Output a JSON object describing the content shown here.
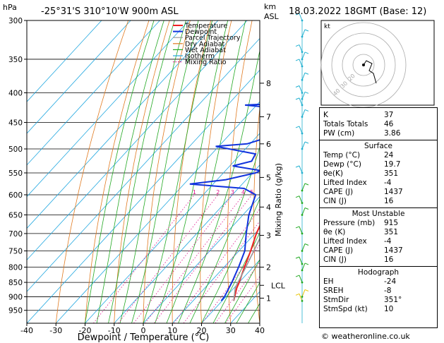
{
  "header": {
    "pressure_unit": "hPa",
    "location": "-25°31'S 310°10'W 900m ASL",
    "height_unit_1": "km",
    "height_unit_2": "ASL",
    "datetime": "18.03.2022 18GMT (Base: 12)"
  },
  "chart_data": {
    "type": "line",
    "title": "-25°31'S 310°10'W 900m ASL",
    "xlabel": "Dewpoint / Temperature (°C)",
    "ylabel": "hPa",
    "y_scale": "log",
    "xlim": [
      -40,
      40
    ],
    "ylim": [
      1000,
      300
    ],
    "x_ticks": [
      -40,
      -30,
      -20,
      -10,
      0,
      10,
      20,
      30,
      40
    ],
    "pressure_levels": [
      300,
      350,
      400,
      450,
      500,
      550,
      600,
      650,
      700,
      750,
      800,
      850,
      900,
      950
    ],
    "legend": [
      "Temperature",
      "Dewpoint",
      "Parcel Trajectory",
      "Dry Adiabat",
      "Wet Adiabat",
      "Isotherm",
      "Mixing Ratio"
    ],
    "legend_position": "top-left",
    "km_axis": [
      {
        "km": "8",
        "p": 385
      },
      {
        "km": "7",
        "p": 440
      },
      {
        "km": "6",
        "p": 490
      },
      {
        "km": "5",
        "p": 560
      },
      {
        "km": "4",
        "p": 630
      },
      {
        "km": "3",
        "p": 705
      },
      {
        "km": "2",
        "p": 800
      },
      {
        "km": "LCL",
        "p": 860
      },
      {
        "km": "1",
        "p": 905
      }
    ],
    "mixing_ratio_label": "Mixing Ratio (g/kg)",
    "mixing_ratios": [
      {
        "label": "1",
        "w": 1
      },
      {
        "label": "2",
        "w": 2
      },
      {
        "label": "3",
        "w": 3
      },
      {
        "label": "4",
        "w": 4
      },
      {
        "label": "5",
        "w": 5
      },
      {
        "label": "8",
        "w": 8
      },
      {
        "label": "10",
        "w": 10
      },
      {
        "label": "15",
        "w": 15
      },
      {
        "label": "20",
        "w": 20
      },
      {
        "label": "25",
        "w": 25
      }
    ],
    "series": [
      {
        "name": "Temperature",
        "color": "#ee2222",
        "points": [
          [
            915,
            24
          ],
          [
            900,
            23
          ],
          [
            870,
            21
          ],
          [
            850,
            20
          ],
          [
            800,
            17
          ],
          [
            750,
            14
          ],
          [
            700,
            10.5
          ],
          [
            650,
            7.5
          ],
          [
            600,
            4
          ],
          [
            550,
            0.5
          ],
          [
            500,
            -4
          ],
          [
            450,
            -10
          ],
          [
            400,
            -16.5
          ],
          [
            350,
            -24
          ],
          [
            300,
            -33.5
          ]
        ]
      },
      {
        "name": "Dewpoint",
        "color": "#1133dd",
        "points": [
          [
            915,
            19.7
          ],
          [
            900,
            19.5
          ],
          [
            850,
            17.5
          ],
          [
            800,
            15
          ],
          [
            750,
            12
          ],
          [
            700,
            7
          ],
          [
            650,
            2
          ],
          [
            600,
            -2
          ],
          [
            585,
            -8
          ],
          [
            575,
            -28
          ],
          [
            565,
            -17
          ],
          [
            550,
            -9
          ],
          [
            545,
            -8
          ],
          [
            535,
            -19
          ],
          [
            525,
            -14
          ],
          [
            510,
            -15
          ],
          [
            495,
            -31
          ],
          [
            490,
            -21
          ],
          [
            480,
            -17
          ],
          [
            470,
            -13
          ],
          [
            460,
            -11
          ],
          [
            450,
            -13
          ],
          [
            440,
            -12
          ],
          [
            430,
            -10
          ],
          [
            420,
            -34
          ],
          [
            415,
            -14
          ],
          [
            405,
            -12
          ],
          [
            395,
            -20
          ],
          [
            385,
            -17
          ],
          [
            375,
            -23
          ],
          [
            360,
            -23
          ],
          [
            350,
            -25
          ],
          [
            340,
            -28
          ],
          [
            320,
            -33
          ],
          [
            300,
            -40
          ]
        ]
      },
      {
        "name": "Parcel Trajectory",
        "color": "#999999",
        "points": [
          [
            915,
            24
          ],
          [
            870,
            20.5
          ],
          [
            860,
            20
          ],
          [
            800,
            17.5
          ],
          [
            700,
            12.5
          ],
          [
            600,
            6.5
          ],
          [
            500,
            -1
          ],
          [
            400,
            -11
          ],
          [
            350,
            -17.5
          ],
          [
            300,
            -25
          ]
        ]
      }
    ]
  },
  "hodograph": {
    "label": "kt",
    "ring_labels": [
      "20",
      "30",
      "40"
    ]
  },
  "wind_barbs": {
    "right": [
      300,
      320,
      340,
      350,
      360,
      380,
      400,
      410,
      420,
      440,
      470,
      500,
      550,
      590,
      620,
      650,
      700,
      750,
      790,
      810,
      850,
      900,
      915
    ]
  },
  "indices": {
    "basic": [
      {
        "label": "K",
        "value": "37"
      },
      {
        "label": "Totals Totals",
        "value": "46"
      },
      {
        "label": "PW (cm)",
        "value": "3.86"
      }
    ],
    "surface_title": "Surface",
    "surface": [
      {
        "label": "Temp (°C)",
        "value": "24"
      },
      {
        "label": "Dewp (°C)",
        "value": "19.7"
      },
      {
        "label": "θe(K)",
        "value": "351"
      },
      {
        "label": "Lifted Index",
        "value": "-4"
      },
      {
        "label": "CAPE (J)",
        "value": "1437"
      },
      {
        "label": "CIN (J)",
        "value": "16"
      }
    ],
    "unstable_title": "Most Unstable",
    "unstable": [
      {
        "label": "Pressure (mb)",
        "value": "915"
      },
      {
        "label": "θe (K)",
        "value": "351"
      },
      {
        "label": "Lifted Index",
        "value": "-4"
      },
      {
        "label": "CAPE (J)",
        "value": "1437"
      },
      {
        "label": "CIN (J)",
        "value": "16"
      }
    ],
    "hodo_title": "Hodograph",
    "hodo": [
      {
        "label": "EH",
        "value": "-24"
      },
      {
        "label": "SREH",
        "value": "-8"
      },
      {
        "label": "StmDir",
        "value": "351°"
      },
      {
        "label": "StmSpd (kt)",
        "value": "10"
      }
    ]
  },
  "footer": "© weatheronline.co.uk",
  "colors": {
    "temperature": "#ee2222",
    "dewpoint": "#1133dd",
    "parcel": "#999999",
    "dry_adiabat": "#e07a20",
    "wet_adiabat": "#22a822",
    "isotherm": "#22a8e0",
    "mixing_ratio": "#e0108a",
    "barbs": "#22b0d0"
  }
}
